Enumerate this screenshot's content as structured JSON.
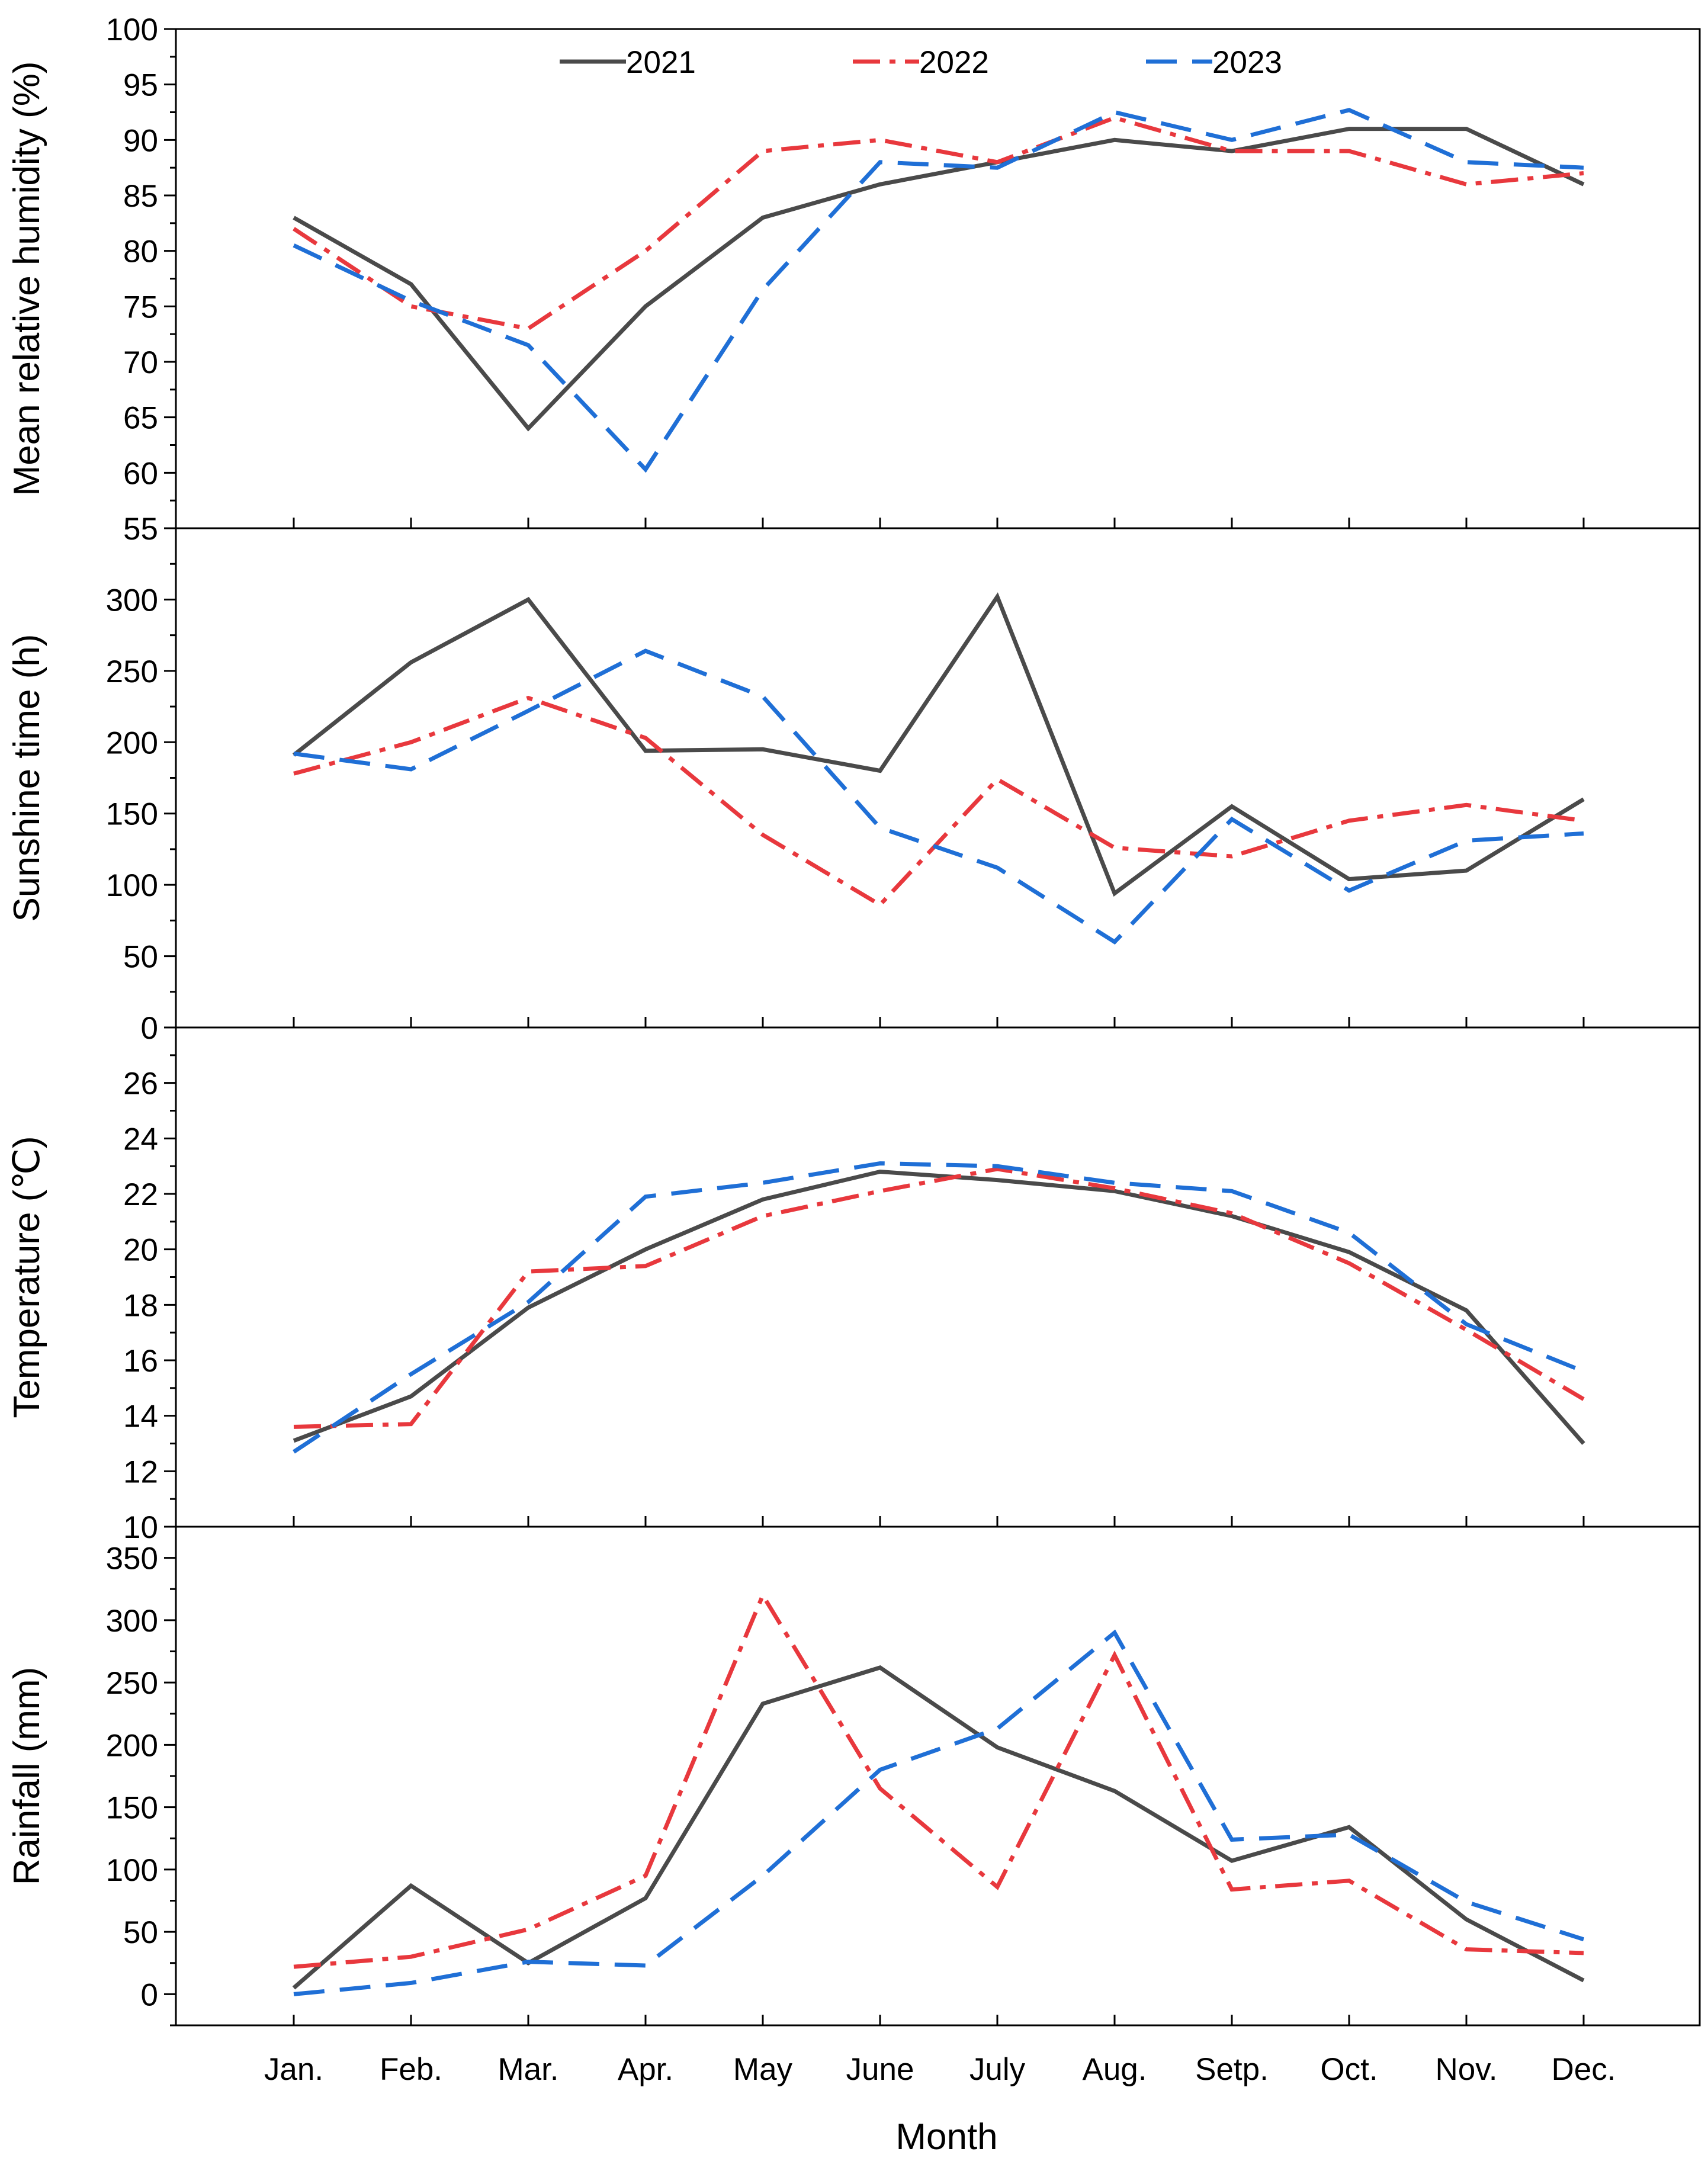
{
  "colors": {
    "2021": "#4a4a4a",
    "2022": "#e8383d",
    "2023": "#1f6fd6",
    "axis": "#000000"
  },
  "legend": [
    {
      "name": "2021",
      "style": "solid"
    },
    {
      "name": "2022",
      "style": "dashdot"
    },
    {
      "name": "2023",
      "style": "dash"
    }
  ],
  "chart_data": {
    "type": "line",
    "xlabel": "Month",
    "categories": [
      "Jan.",
      "Feb.",
      "Mar.",
      "Apr.",
      "May",
      "June",
      "July",
      "Aug.",
      "Setp.",
      "Oct.",
      "Nov.",
      "Dec."
    ],
    "panels": [
      {
        "ylabel": "Mean relative humidity (%)",
        "ylim": [
          55,
          100
        ],
        "yticks": [
          55,
          60,
          65,
          70,
          75,
          80,
          85,
          90,
          95,
          100
        ],
        "yminor_step": 2.5,
        "series": [
          {
            "name": "2021",
            "values": [
              83,
              77,
              64,
              75,
              83,
              86,
              88,
              90,
              89,
              91,
              91,
              86
            ]
          },
          {
            "name": "2022",
            "values": [
              82,
              75,
              73,
              80,
              89,
              90,
              88,
              92,
              89,
              89,
              86,
              87
            ]
          },
          {
            "name": "2023",
            "values": [
              80.5,
              75.5,
              71.5,
              60.3,
              76.5,
              88,
              87.5,
              92.5,
              90,
              92.7,
              88,
              87.5
            ]
          }
        ]
      },
      {
        "ylabel": "Sunshine time (h)",
        "ylim": [
          0,
          350
        ],
        "yticks": [
          0,
          50,
          100,
          150,
          200,
          250,
          300
        ],
        "yminor_step": 25,
        "series": [
          {
            "name": "2021",
            "values": [
              191,
              256,
              300,
              194,
              195,
              180,
              302,
              94,
              155,
              104,
              110,
              160
            ]
          },
          {
            "name": "2022",
            "values": [
              178,
              200,
              231,
              203,
              135,
              86,
              174,
              126,
              120,
              145,
              156,
              145
            ]
          },
          {
            "name": "2023",
            "values": [
              192,
              181,
              222,
              264,
              232,
              140,
              112,
              60,
              146,
              96,
              131,
              136
            ]
          }
        ]
      },
      {
        "ylabel": "Temperature (℃)",
        "ylim": [
          10,
          28
        ],
        "yticks": [
          10,
          12,
          14,
          16,
          18,
          20,
          22,
          24,
          26
        ],
        "yminor_step": 1,
        "series": [
          {
            "name": "2021",
            "values": [
              13.1,
              14.7,
              17.9,
              20.0,
              21.8,
              22.8,
              22.5,
              22.1,
              21.2,
              19.9,
              17.8,
              13.0
            ]
          },
          {
            "name": "2022",
            "values": [
              13.6,
              13.7,
              19.2,
              19.4,
              21.2,
              22.1,
              22.9,
              22.2,
              21.3,
              19.5,
              17.1,
              14.6
            ]
          },
          {
            "name": "2023",
            "values": [
              12.7,
              15.5,
              18.1,
              21.9,
              22.4,
              23.1,
              23.0,
              22.4,
              22.1,
              20.6,
              17.3,
              15.6
            ]
          }
        ]
      },
      {
        "ylabel": "Rainfall (mm)",
        "ylim": [
          -25,
          375
        ],
        "yticks": [
          0,
          50,
          100,
          150,
          200,
          250,
          300,
          350
        ],
        "yminor_step": 25,
        "series": [
          {
            "name": "2021",
            "values": [
              5,
              87,
              25,
              77,
              233,
              262,
              198,
              163,
              107,
              134,
              60,
              11
            ]
          },
          {
            "name": "2022",
            "values": [
              22,
              30,
              52,
              95,
              320,
              165,
              86,
              272,
              84,
              91,
              36,
              33
            ]
          },
          {
            "name": "2023",
            "values": [
              0,
              9,
              26,
              23,
              95,
              180,
              213,
              290,
              124,
              128,
              74,
              44
            ]
          }
        ]
      }
    ]
  }
}
